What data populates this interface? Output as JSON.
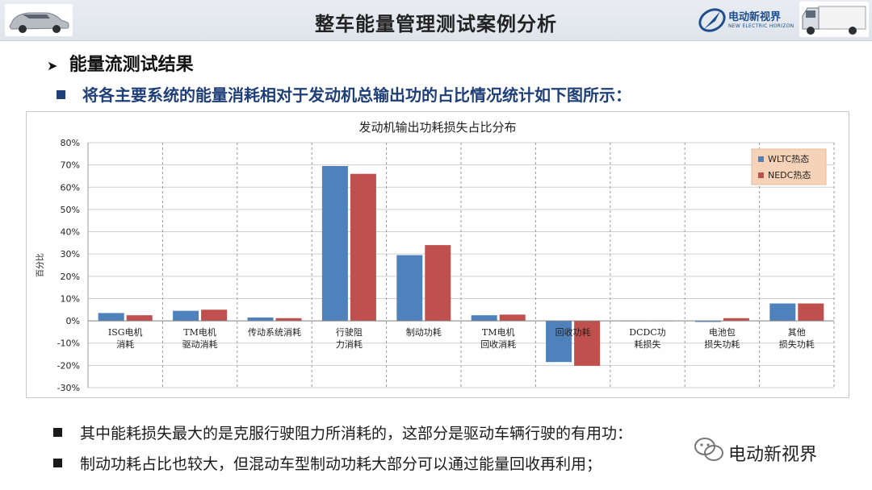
{
  "header": {
    "title": "整车能量管理测试案例分析",
    "brand_name": "电动新视界",
    "brand_sub": "NEW ELECTRIC HORIZON"
  },
  "section": {
    "title": "能量流测试结果",
    "bullet": "将各主要系统的能量消耗相对于发动机总输出功的占比情况统计如下图所示："
  },
  "chart_data": {
    "type": "bar",
    "title": "发动机输出功耗损失占比分布",
    "ylabel": "百分比",
    "xlabel": "",
    "ylim": [
      -30,
      80
    ],
    "yticks": [
      "80%",
      "70%",
      "60%",
      "50%",
      "40%",
      "30%",
      "20%",
      "10%",
      "0%",
      "-10%",
      "-20%",
      "-30%"
    ],
    "grid": true,
    "legend_position": "top-right",
    "categories": [
      [
        "ISG电机",
        "消耗"
      ],
      [
        "TM电机",
        "驱动消耗"
      ],
      [
        "传动系统消耗"
      ],
      [
        "行驶阻",
        "力消耗"
      ],
      [
        "制动功耗"
      ],
      [
        "TM电机",
        "回收消耗"
      ],
      [
        "回收功耗"
      ],
      [
        "DCDC功",
        "耗损失"
      ],
      [
        "电池包",
        "损失功耗"
      ],
      [
        "其他",
        "损失功耗"
      ]
    ],
    "series": [
      {
        "name": "WLTC热态",
        "color": "#4f81bd",
        "values": [
          3.5,
          4.5,
          1.5,
          69.5,
          29.5,
          2.5,
          -18.5,
          0,
          -0.5,
          7.8
        ]
      },
      {
        "name": "NEDC热态",
        "color": "#c0504d",
        "values": [
          2.5,
          5,
          1.2,
          66,
          34,
          2.8,
          -20.2,
          0,
          1.2,
          7.8
        ]
      }
    ]
  },
  "bullets": [
    "其中能耗损失最大的是克服行驶阻力所消耗的，这部分是驱动车辆行驶的有用功：",
    "制动功耗占比也较大，但混动车型制动功耗大部分可以通过能量回收再利用；"
  ],
  "watermark": {
    "text": "电动新视界"
  }
}
